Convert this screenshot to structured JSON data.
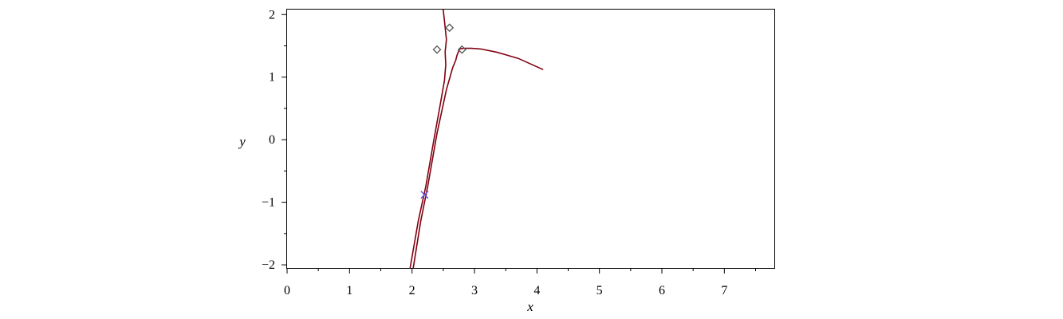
{
  "chart_data": {
    "type": "line",
    "xlabel": "x",
    "ylabel": "y",
    "xlim": [
      0,
      7.8
    ],
    "ylim": [
      -2.05,
      2.08
    ],
    "x_ticks": [
      0,
      1,
      2,
      3,
      4,
      5,
      6,
      7
    ],
    "y_ticks": [
      -2,
      -1,
      0,
      1,
      2
    ],
    "x_tick_labels": [
      "0",
      "1",
      "2",
      "3",
      "4",
      "5",
      "6",
      "7"
    ],
    "y_tick_labels": [
      "−2",
      "−1",
      "0",
      "1",
      "2"
    ],
    "grid": false,
    "colors": {
      "curve": "#800010",
      "diamond": "#555555",
      "cross": "#5a5adc"
    },
    "series": [
      {
        "type": "line",
        "values": [
          [
            1.97,
            -2.05
          ],
          [
            2.1,
            -1.3
          ],
          [
            2.22,
            -0.75
          ],
          [
            2.35,
            0.0
          ],
          [
            2.45,
            0.55
          ],
          [
            2.52,
            0.95
          ],
          [
            2.54,
            1.2
          ],
          [
            2.53,
            1.4
          ],
          [
            2.55,
            1.6
          ],
          [
            2.53,
            1.8
          ],
          [
            2.5,
            2.08
          ]
        ]
      },
      {
        "type": "line",
        "values": [
          [
            2.02,
            -2.05
          ],
          [
            2.14,
            -1.3
          ],
          [
            2.25,
            -0.75
          ],
          [
            2.4,
            0.1
          ],
          [
            2.55,
            0.8
          ],
          [
            2.65,
            1.15
          ],
          [
            2.7,
            1.27
          ],
          [
            2.72,
            1.35
          ],
          [
            2.76,
            1.45
          ],
          [
            2.82,
            1.46
          ],
          [
            2.95,
            1.46
          ],
          [
            3.1,
            1.45
          ],
          [
            3.35,
            1.4
          ],
          [
            3.7,
            1.3
          ],
          [
            4.1,
            1.12
          ]
        ]
      },
      {
        "type": "scatter",
        "marker": "diamond",
        "values": [
          [
            2.4,
            1.44
          ],
          [
            2.6,
            1.79
          ],
          [
            2.8,
            1.44
          ]
        ]
      },
      {
        "type": "scatter",
        "marker": "x",
        "values": [
          [
            2.2,
            -0.88
          ]
        ]
      }
    ]
  }
}
